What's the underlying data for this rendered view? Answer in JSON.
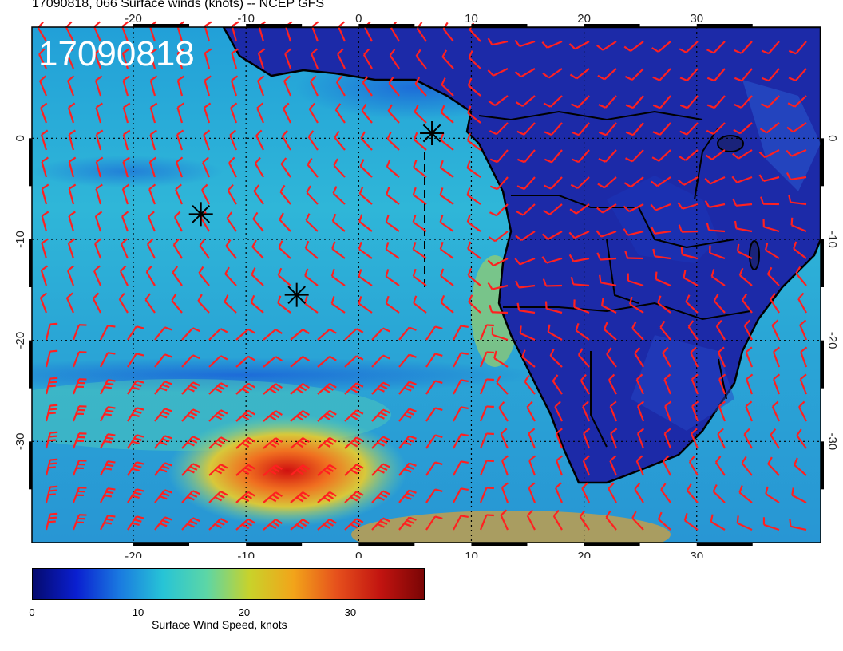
{
  "title": "17090818, 066 Surface winds (knots) -- NCEP GFS",
  "stamp": "17090818",
  "colors": {
    "ocean_base": "#2aa6d8",
    "land": "#1c2aa8",
    "barb": "#ff2020",
    "coast": "#000000"
  },
  "axes": {
    "lon_ticks": [
      "-20",
      "-10",
      "0",
      "10",
      "20",
      "30"
    ],
    "lat_ticks": [
      "0",
      "-10",
      "-20",
      "-30"
    ],
    "lon_range": [
      -29,
      41
    ],
    "lat_range": [
      -40,
      11
    ]
  },
  "markers": [
    {
      "name": "storm-marker-1",
      "lon": 6.5,
      "lat": 0.5
    },
    {
      "name": "storm-marker-2",
      "lon": -14,
      "lat": -7.5
    },
    {
      "name": "storm-marker-3",
      "lon": -5.5,
      "lat": -15.5
    }
  ],
  "colorbar": {
    "ticks": [
      "0",
      "10",
      "20",
      "30"
    ],
    "max": 37,
    "label": "Surface Wind Speed, knots",
    "stops": [
      "#050a6e",
      "#0a1fd0",
      "#1a7ae0",
      "#27c4d6",
      "#5cd6a6",
      "#c9d22a",
      "#f2a41a",
      "#e6501c",
      "#c21410",
      "#7a0505"
    ]
  }
}
